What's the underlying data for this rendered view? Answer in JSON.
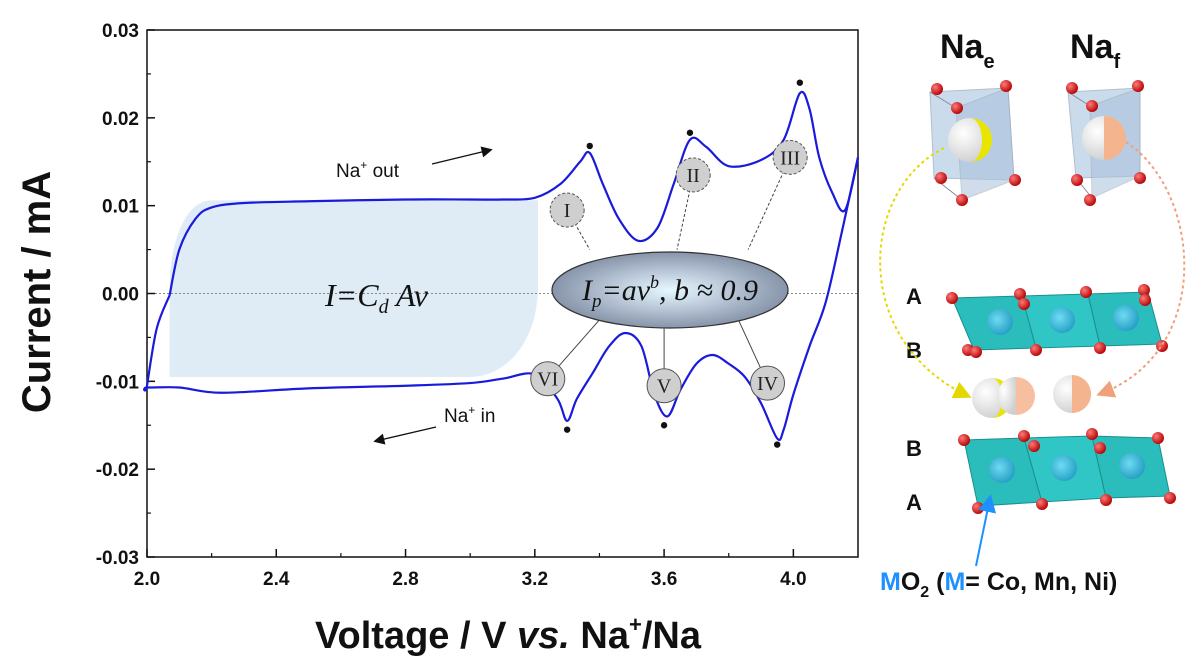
{
  "chart_data": {
    "type": "line",
    "xlabel_main": "Voltage / V ",
    "xlabel_vs": "vs.",
    "xlabel_ion": " Na",
    "xlabel_sup": "+",
    "xlabel_end": "/Na",
    "ylabel": "Current / mA",
    "xlim": [
      2.0,
      4.2
    ],
    "ylim": [
      -0.03,
      0.03
    ],
    "x_ticks": [
      "2.0",
      "2.4",
      "2.8",
      "3.2",
      "3.6",
      "4.0"
    ],
    "y_ticks": [
      "-0.03",
      "-0.02",
      "-0.01",
      "0.00",
      "0.01",
      "0.02",
      "0.03"
    ],
    "line_color": "#1a1adc",
    "charge_series": {
      "x": [
        2.07,
        2.1,
        2.15,
        2.2,
        2.3,
        2.5,
        2.8,
        3.0,
        3.1,
        3.2,
        3.28,
        3.34,
        3.37,
        3.41,
        3.46,
        3.52,
        3.58,
        3.63,
        3.68,
        3.73,
        3.8,
        3.9,
        3.97,
        4.02,
        4.05,
        4.08,
        4.12,
        4.16,
        4.2
      ],
      "y": [
        -0.0002,
        0.005,
        0.0085,
        0.0098,
        0.0103,
        0.0105,
        0.0107,
        0.0107,
        0.0107,
        0.0109,
        0.0125,
        0.015,
        0.016,
        0.0125,
        0.0085,
        0.006,
        0.0075,
        0.0125,
        0.0175,
        0.0167,
        0.0145,
        0.0152,
        0.0175,
        0.0228,
        0.021,
        0.0155,
        0.0115,
        0.0095,
        0.0155
      ]
    },
    "discharge_series": {
      "x": [
        4.2,
        4.15,
        4.1,
        4.05,
        4.0,
        3.97,
        3.95,
        3.9,
        3.85,
        3.8,
        3.75,
        3.7,
        3.65,
        3.61,
        3.57,
        3.53,
        3.48,
        3.43,
        3.38,
        3.33,
        3.3,
        3.27,
        3.2,
        3.1,
        3.0,
        2.8,
        2.5,
        2.23,
        2.1,
        2.0,
        2.0,
        2.03,
        2.07
      ],
      "y": [
        0.0155,
        0.007,
        -0.001,
        -0.006,
        -0.0115,
        -0.0155,
        -0.0165,
        -0.0125,
        -0.0095,
        -0.008,
        -0.007,
        -0.008,
        -0.011,
        -0.014,
        -0.0115,
        -0.006,
        -0.0045,
        -0.006,
        -0.009,
        -0.012,
        -0.0145,
        -0.012,
        -0.0092,
        -0.0097,
        -0.0102,
        -0.0105,
        -0.0108,
        -0.0113,
        -0.0107,
        -0.0107,
        -0.0105,
        -0.004,
        -0.0002
      ]
    },
    "peak_markers": [
      {
        "x": 3.37,
        "y": 0.0168
      },
      {
        "x": 3.68,
        "y": 0.0183
      },
      {
        "x": 4.02,
        "y": 0.024
      },
      {
        "x": 3.3,
        "y": -0.0155
      },
      {
        "x": 3.6,
        "y": -0.015
      },
      {
        "x": 3.95,
        "y": -0.0172
      }
    ],
    "peak_labels": [
      {
        "label": "I",
        "x": 3.3,
        "y": 0.0095,
        "to_x": 3.37,
        "to_y": 0.005
      },
      {
        "label": "II",
        "x": 3.69,
        "y": 0.0135,
        "to_x": 3.64,
        "to_y": 0.005
      },
      {
        "label": "III",
        "x": 3.99,
        "y": 0.0155,
        "to_x": 3.86,
        "to_y": 0.005
      },
      {
        "label": "VI",
        "x": 3.24,
        "y": -0.0097,
        "to_x": 3.4,
        "to_y": -0.003
      },
      {
        "label": "V",
        "x": 3.6,
        "y": -0.0105,
        "to_x": 3.6,
        "to_y": -0.004
      },
      {
        "label": "IV",
        "x": 3.92,
        "y": -0.0102,
        "to_x": 3.83,
        "to_y": -0.003
      }
    ]
  },
  "annotations": {
    "na_out_prefix": "Na",
    "na_out_sup": "+",
    "na_out_suffix": " out",
    "na_in_prefix": "Na",
    "na_in_sup": "+",
    "na_in_suffix": " in",
    "cap_eq_i": "I=C",
    "cap_eq_sub": "d",
    "cap_eq_rest": " Av",
    "peak_eq_i": "I",
    "peak_eq_sub": "p",
    "peak_eq_mid": "=av",
    "peak_eq_sup": "b",
    "peak_eq_end": ", b ≈ 0.9"
  },
  "structure": {
    "na_e_base": "Na",
    "na_e_sub": "e",
    "na_f_base": "Na",
    "na_f_sub": "f",
    "layer_labels": [
      "A",
      "B",
      "B",
      "A"
    ],
    "formula_m": "M",
    "formula_o": "O",
    "formula_sub": "2",
    "formula_open": " (",
    "formula_m2": "M",
    "formula_close": "= Co, Mn, Ni)",
    "accent_color": "#1e90ff",
    "octahedron_color": "#2bbcbc",
    "oxygen_color": "#d40000"
  }
}
